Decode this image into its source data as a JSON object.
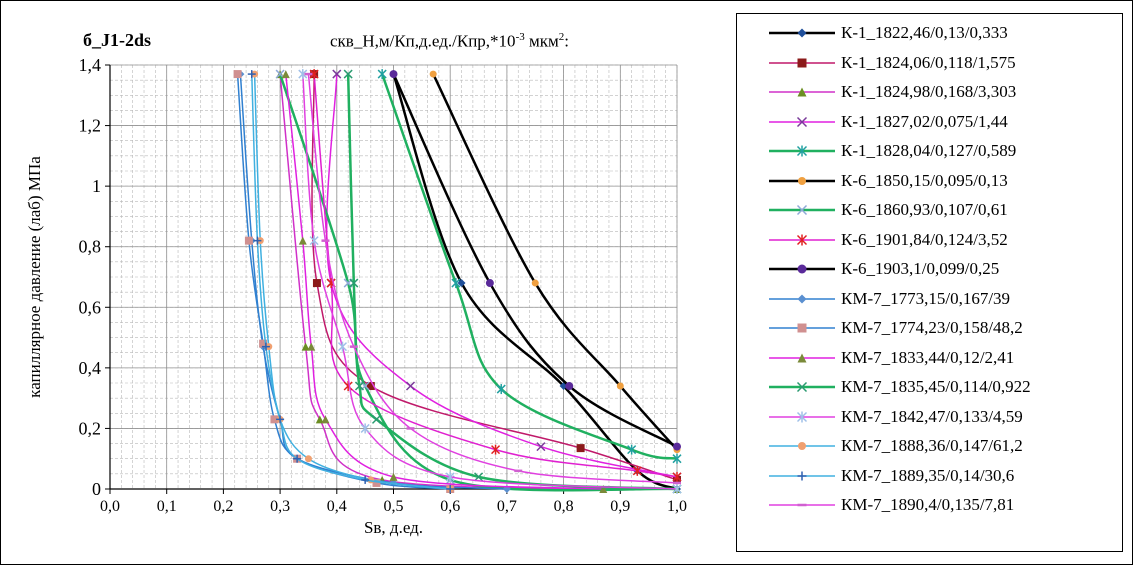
{
  "chart_data": {
    "type": "line",
    "title_left": "б_J1-2ds",
    "title_right": "скв_Н,м/Кп,д.ед./Кпр,*10",
    "title_right_sup": "-3",
    "title_right_tail": " мкм",
    "title_right_sup2": "2",
    "title_right_end": ":",
    "xlabel": "Sв, д.ед.",
    "ylabel": "капиллярное давление (лаб) МПа",
    "xlim": [
      0,
      1
    ],
    "ylim": [
      0,
      1.4
    ],
    "x_ticks": [
      "0,0",
      "0,1",
      "0,2",
      "0,3",
      "0,4",
      "0,5",
      "0,6",
      "0,7",
      "0,8",
      "0,9",
      "1,0"
    ],
    "y_ticks": [
      "0",
      "0,2",
      "0,4",
      "0,6",
      "0,8",
      "1",
      "1,2",
      "1,4"
    ],
    "grid": true,
    "legend_position": "right",
    "series": [
      {
        "name": "К-1_1822,46/0,13/0,333",
        "color": "#000000",
        "marker": "diamond",
        "lw": 2.5,
        "points": [
          [
            0.5,
            1.37
          ],
          [
            0.62,
            0.68
          ],
          [
            0.8,
            0.34
          ],
          [
            0.93,
            0.06
          ],
          [
            1.0,
            0.0
          ]
        ]
      },
      {
        "name": "К-1_1824,06/0,118/1,575",
        "color": "#c0196a",
        "marker": "square",
        "lw": 1.5,
        "points": [
          [
            0.36,
            1.37
          ],
          [
            0.365,
            0.68
          ],
          [
            0.46,
            0.34
          ],
          [
            0.83,
            0.135
          ],
          [
            1.0,
            0.03
          ]
        ]
      },
      {
        "name": "К-1_1824,98/0,168/3,303",
        "color": "#d030c8",
        "marker": "triangle",
        "lw": 1.5,
        "points": [
          [
            0.3,
            1.37
          ],
          [
            0.345,
            0.47
          ],
          [
            0.37,
            0.23
          ],
          [
            0.48,
            0.03
          ],
          [
            1.0,
            0.0
          ]
        ]
      },
      {
        "name": "К-1_1827,02/0,075/1,44",
        "color": "#e020e0",
        "marker": "x",
        "lw": 1.5,
        "points": [
          [
            0.4,
            1.37
          ],
          [
            0.39,
            0.68
          ],
          [
            0.53,
            0.34
          ],
          [
            0.76,
            0.14
          ],
          [
            1.0,
            0.04
          ]
        ]
      },
      {
        "name": "К-1_1828,04/0,127/0,589",
        "color": "#20b060",
        "marker": "star",
        "lw": 2.5,
        "points": [
          [
            0.48,
            1.37
          ],
          [
            0.61,
            0.68
          ],
          [
            0.69,
            0.33
          ],
          [
            0.92,
            0.13
          ],
          [
            1.0,
            0.1
          ]
        ]
      },
      {
        "name": "К-6_1850,15/0,095/0,13",
        "color": "#000000",
        "marker": "circle-orange",
        "lw": 2.5,
        "points": [
          [
            0.57,
            1.37
          ],
          [
            0.75,
            0.68
          ],
          [
            0.9,
            0.34
          ],
          [
            1.0,
            0.13
          ]
        ]
      },
      {
        "name": "К-6_1860,93/0,107/0,61",
        "color": "#20b060",
        "marker": "x-light",
        "lw": 2.5,
        "points": [
          [
            0.3,
            1.37
          ],
          [
            0.42,
            0.68
          ],
          [
            0.45,
            0.34
          ],
          [
            0.6,
            0.03
          ],
          [
            1.0,
            0.0
          ]
        ]
      },
      {
        "name": "К-6_1901,84/0,124/3,52",
        "color": "#e020d0",
        "marker": "star-red",
        "lw": 1.5,
        "points": [
          [
            0.36,
            1.37
          ],
          [
            0.39,
            0.68
          ],
          [
            0.42,
            0.34
          ],
          [
            0.68,
            0.13
          ],
          [
            0.93,
            0.06
          ],
          [
            1.0,
            0.04
          ]
        ]
      },
      {
        "name": "К-6_1903,1/0,099/0,25",
        "color": "#000000",
        "marker": "circle-purple",
        "lw": 2.5,
        "points": [
          [
            0.5,
            1.37
          ],
          [
            0.67,
            0.68
          ],
          [
            0.81,
            0.34
          ],
          [
            1.0,
            0.14
          ]
        ]
      },
      {
        "name": "КМ-7_1773,15/0,167/39",
        "color": "#3080d0",
        "marker": "diamond-blue",
        "lw": 1.5,
        "points": [
          [
            0.23,
            1.37
          ],
          [
            0.25,
            0.82
          ],
          [
            0.27,
            0.47
          ],
          [
            0.3,
            0.23
          ],
          [
            0.33,
            0.1
          ],
          [
            0.5,
            0.02
          ],
          [
            0.7,
            0.0
          ]
        ]
      },
      {
        "name": "КМ-7_1774,23/0,158/48,2",
        "color": "#3080d0",
        "marker": "square-pink",
        "lw": 1.5,
        "points": [
          [
            0.225,
            1.37
          ],
          [
            0.245,
            0.82
          ],
          [
            0.27,
            0.48
          ],
          [
            0.29,
            0.23
          ],
          [
            0.33,
            0.1
          ],
          [
            0.47,
            0.02
          ],
          [
            0.6,
            0.0
          ]
        ]
      },
      {
        "name": "КМ-7_1833,44/0,12/2,41",
        "color": "#e020e0",
        "marker": "triangle-olive",
        "lw": 1.5,
        "points": [
          [
            0.31,
            1.37
          ],
          [
            0.34,
            0.82
          ],
          [
            0.355,
            0.47
          ],
          [
            0.38,
            0.23
          ],
          [
            0.5,
            0.04
          ],
          [
            0.87,
            0.0
          ]
        ]
      },
      {
        "name": "КМ-7_1835,45/0,114/0,922",
        "color": "#20b060",
        "marker": "x-green",
        "lw": 2.5,
        "points": [
          [
            0.42,
            1.37
          ],
          [
            0.43,
            0.68
          ],
          [
            0.44,
            0.34
          ],
          [
            0.47,
            0.23
          ],
          [
            0.65,
            0.04
          ],
          [
            1.0,
            0.0
          ]
        ]
      },
      {
        "name": "КМ-7_1842,47/0,133/4,59",
        "color": "#e040e0",
        "marker": "star-lblue",
        "lw": 1.5,
        "points": [
          [
            0.34,
            1.37
          ],
          [
            0.36,
            0.82
          ],
          [
            0.41,
            0.47
          ],
          [
            0.45,
            0.2
          ],
          [
            0.6,
            0.04
          ],
          [
            1.0,
            0.0
          ]
        ]
      },
      {
        "name": "КМ-7_1888,36/0,147/61,2",
        "color": "#40b0e0",
        "marker": "circle-peach",
        "lw": 1.5,
        "points": [
          [
            0.255,
            1.37
          ],
          [
            0.265,
            0.82
          ],
          [
            0.28,
            0.47
          ],
          [
            0.3,
            0.23
          ],
          [
            0.35,
            0.1
          ],
          [
            0.46,
            0.03
          ],
          [
            0.6,
            0.0
          ]
        ]
      },
      {
        "name": "КМ-7_1889,35/0,14/30,6",
        "color": "#40b0e0",
        "marker": "plus",
        "lw": 1.5,
        "points": [
          [
            0.25,
            1.37
          ],
          [
            0.26,
            0.82
          ],
          [
            0.275,
            0.47
          ],
          [
            0.3,
            0.23
          ],
          [
            0.33,
            0.1
          ],
          [
            0.45,
            0.03
          ],
          [
            0.6,
            0.0
          ]
        ]
      },
      {
        "name": "КМ-7_1890,4/0,135/7,81",
        "color": "#e040e0",
        "marker": "dash",
        "lw": 1.5,
        "points": [
          [
            0.35,
            1.37
          ],
          [
            0.38,
            0.82
          ],
          [
            0.43,
            0.47
          ],
          [
            0.53,
            0.2
          ],
          [
            0.72,
            0.06
          ],
          [
            1.0,
            0.02
          ]
        ]
      }
    ]
  }
}
